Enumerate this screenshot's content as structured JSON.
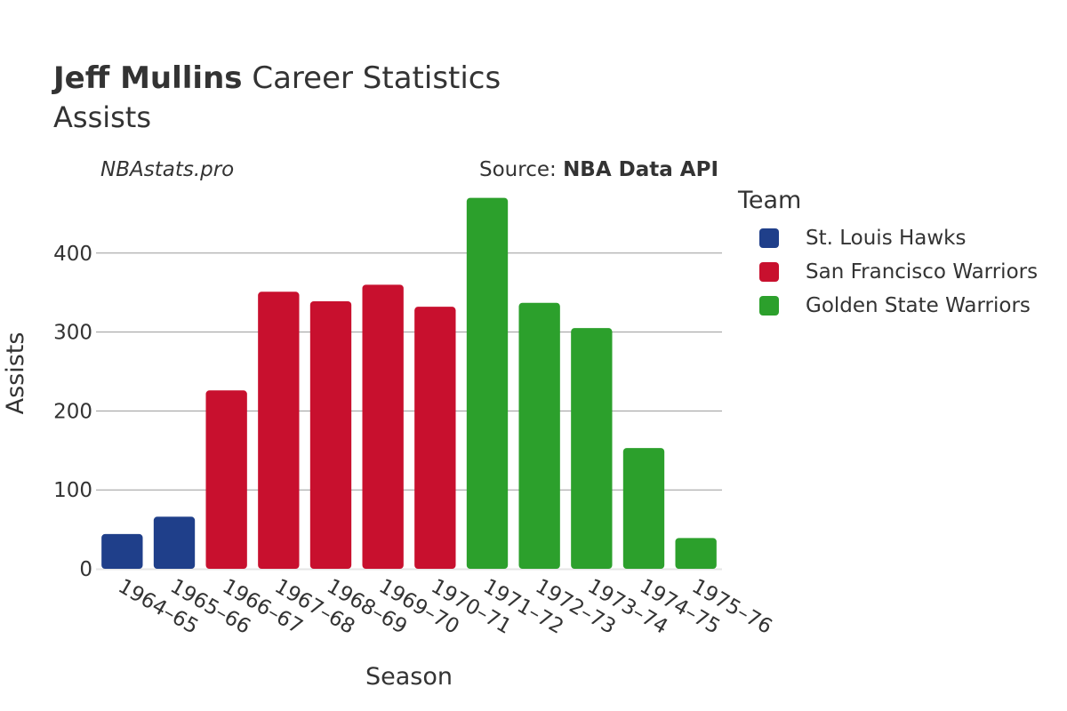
{
  "header": {
    "title_bold": "Jeff Mullins",
    "title_rest": "Career Statistics",
    "subtitle": "Assists",
    "brand": "NBAstats.pro",
    "source_prefix": "Source:",
    "source_name": "NBA Data API"
  },
  "legend": {
    "title": "Team",
    "items": [
      {
        "label": "St. Louis Hawks",
        "color": "#1f3f8a"
      },
      {
        "label": "San Francisco Warriors",
        "color": "#c8102e"
      },
      {
        "label": "Golden State Warriors",
        "color": "#2ca02c"
      }
    ]
  },
  "chart_data": {
    "type": "bar",
    "xlabel": "Season",
    "ylabel": "Assists",
    "ylim": [
      0,
      470
    ],
    "yticks": [
      0,
      100,
      200,
      300,
      400
    ],
    "grid": true,
    "legend_position": "right",
    "categories": [
      "1964–65",
      "1965–66",
      "1966–67",
      "1967–68",
      "1968–69",
      "1969–70",
      "1970–71",
      "1971–72",
      "1972–73",
      "1973–74",
      "1974–75",
      "1975–76"
    ],
    "values": [
      44,
      66,
      226,
      351,
      339,
      360,
      332,
      470,
      337,
      305,
      153,
      39
    ],
    "teams": [
      "St. Louis Hawks",
      "St. Louis Hawks",
      "San Francisco Warriors",
      "San Francisco Warriors",
      "San Francisco Warriors",
      "San Francisco Warriors",
      "San Francisco Warriors",
      "Golden State Warriors",
      "Golden State Warriors",
      "Golden State Warriors",
      "Golden State Warriors",
      "Golden State Warriors"
    ]
  }
}
